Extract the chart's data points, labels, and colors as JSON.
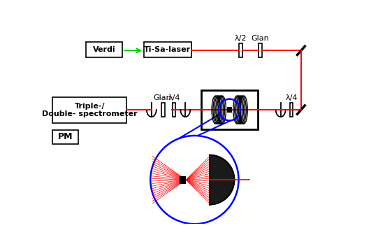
{
  "bg_color": "#ffffff",
  "red": "#ff0000",
  "green": "#00cc00",
  "blue": "#0000ff",
  "black": "#000000",
  "labels": {
    "verdi": "Verdi",
    "ti_sa": "Ti-Sa-laser",
    "triple_line1": "Triple-/",
    "triple_line2": "Double- spectrometer",
    "pm": "PM",
    "glan_top": "Glan",
    "lam2": "λ/2",
    "glan_mid": "Glan",
    "lam4_left": "λ/4",
    "lam4_right": "λ/4"
  },
  "fig_width": 5.41,
  "fig_height": 3.59,
  "dpi": 100
}
